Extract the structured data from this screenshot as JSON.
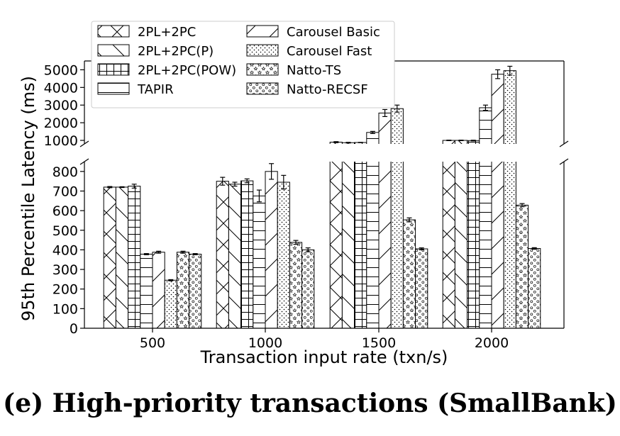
{
  "caption": "(e) High-priority transactions (SmallBank)",
  "chart_data": {
    "type": "bar",
    "title": "",
    "xlabel": "Transaction input rate (txn/s)",
    "ylabel": "95th Percentile Latency (ms)",
    "broken_axis": true,
    "lower_ylim": [
      0,
      850
    ],
    "upper_ylim": [
      800,
      5500
    ],
    "lower_yticks": [
      "0",
      "100",
      "200",
      "300",
      "400",
      "500",
      "600",
      "700",
      "800"
    ],
    "upper_yticks": [
      "1000",
      "2000",
      "3000",
      "4000",
      "5000"
    ],
    "legend_position": "upper-left",
    "grid": false,
    "categories": [
      "500",
      "1000",
      "1500",
      "2000"
    ],
    "series": [
      {
        "name": "2PL+2PC",
        "pattern": "crosshatch",
        "values": [
          720,
          750,
          900,
          1000
        ],
        "errors": [
          3,
          20,
          30,
          15
        ]
      },
      {
        "name": "2PL+2PC(P)",
        "pattern": "backslash",
        "values": [
          720,
          735,
          870,
          1000
        ],
        "errors": [
          2,
          10,
          20,
          15
        ]
      },
      {
        "name": "2PL+2PC(POW)",
        "pattern": "grid",
        "values": [
          725,
          752,
          880,
          990
        ],
        "errors": [
          10,
          10,
          10,
          20
        ]
      },
      {
        "name": "TAPIR",
        "pattern": "horizontal",
        "values": [
          378,
          675,
          1450,
          2850
        ],
        "errors": [
          3,
          30,
          60,
          150
        ]
      },
      {
        "name": "Carousel Basic",
        "pattern": "slash",
        "values": [
          388,
          800,
          2550,
          4750
        ],
        "errors": [
          5,
          40,
          200,
          250
        ]
      },
      {
        "name": "Carousel Fast",
        "pattern": "dots",
        "values": [
          245,
          745,
          2800,
          4950
        ],
        "errors": [
          3,
          35,
          200,
          250
        ]
      },
      {
        "name": "Natto-TS",
        "pattern": "stars",
        "values": [
          388,
          438,
          553,
          628
        ],
        "errors": [
          5,
          10,
          10,
          8
        ]
      },
      {
        "name": "Natto-RECSF",
        "pattern": "circles",
        "values": [
          378,
          400,
          405,
          407
        ],
        "errors": [
          3,
          10,
          5,
          4
        ]
      }
    ]
  }
}
